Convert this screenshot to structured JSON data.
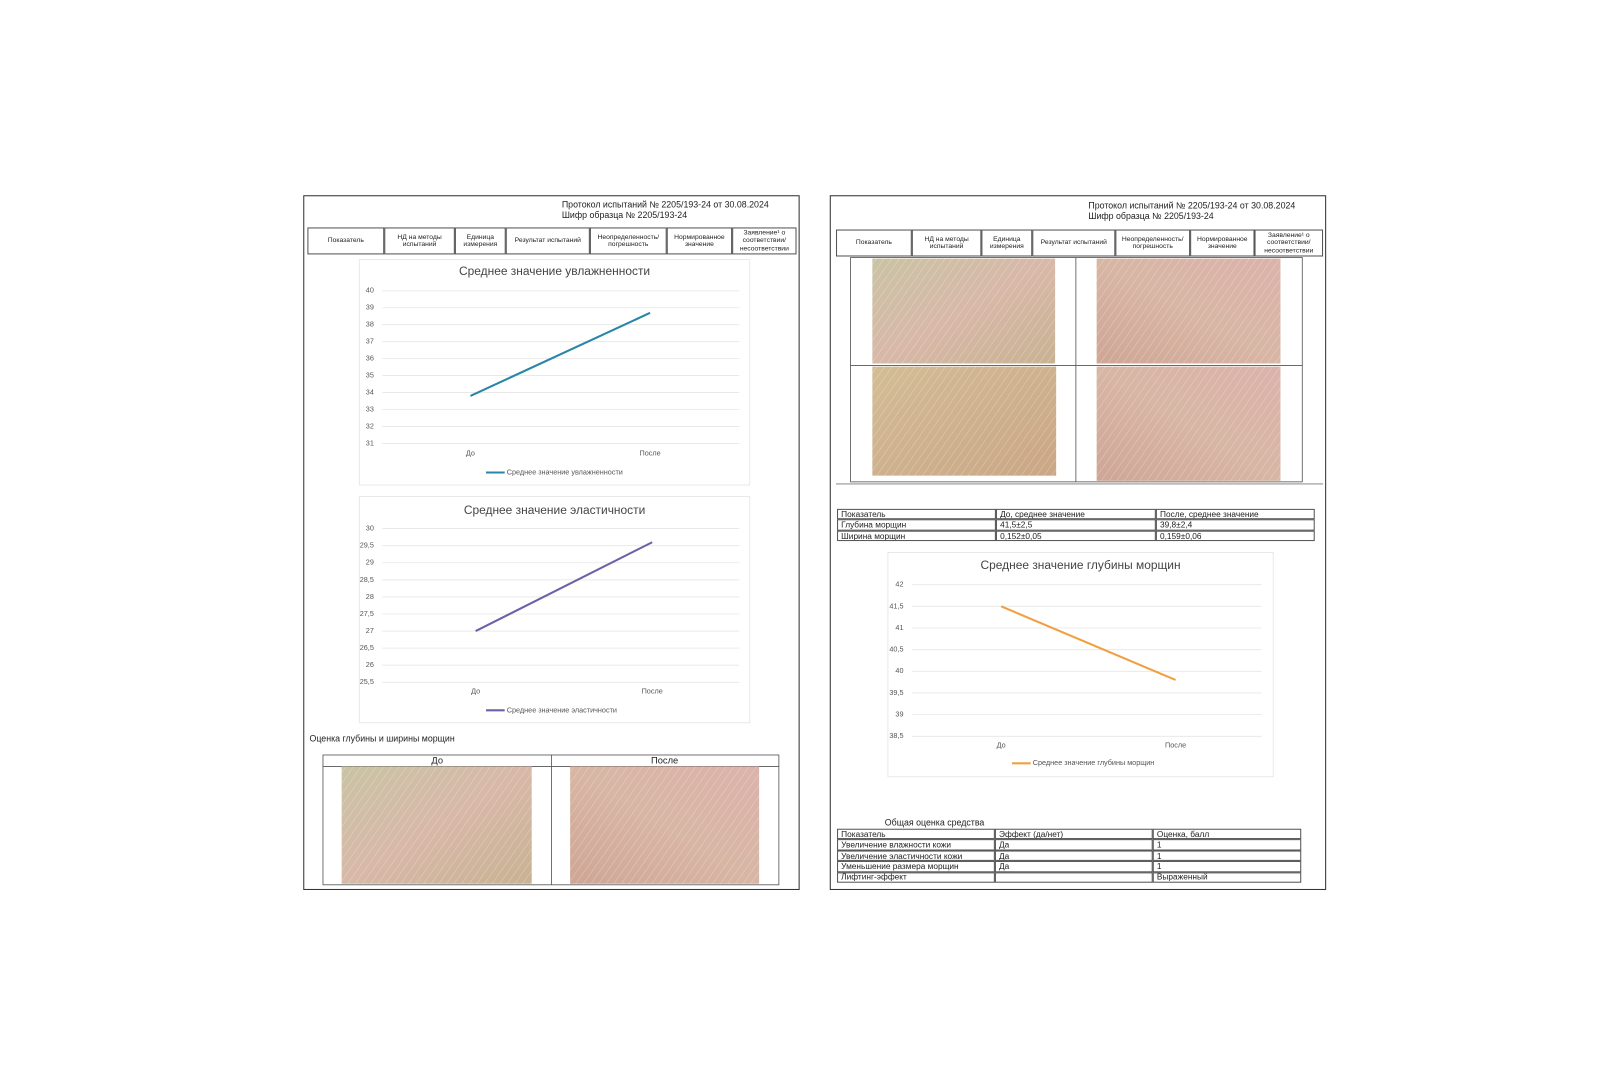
{
  "pages": [
    {
      "header": {
        "protocol": "Протокол испытаний № 2205/193-24 от 30.08.2024",
        "sample": "Шифр образца № 2205/193-24"
      },
      "columns": [
        "Показатель",
        "НД на методы испытаний",
        "Единица измерения",
        "Результат испытаний",
        "Неопределенность/ погрешность",
        "Нормированное значение",
        "Заявление¹ о соответствии/ несоответствии"
      ],
      "section_title": "Оценка глубины и ширины морщин",
      "photo_headers": [
        "До",
        "После"
      ]
    },
    {
      "header": {
        "protocol": "Протокол испытаний № 2205/193-24 от 30.08.2024",
        "sample": "Шифр образца № 2205/193-24"
      },
      "columns": [
        "Показатель",
        "НД на методы испытаний",
        "Единица измерения",
        "Результат испытаний",
        "Неопределенность/ погрешность",
        "Нормированное значение",
        "Заявление¹ о соответствии/ несоответствии"
      ],
      "results_table": {
        "header": [
          "Показатель",
          "До, среднее значение",
          "После, среднее значение"
        ],
        "rows": [
          [
            "Глубина морщин",
            "41,5±2,5",
            "39,8±2,4"
          ],
          [
            "Ширина морщин",
            "0,152±0,05",
            "0,159±0,06"
          ]
        ]
      },
      "summary": {
        "title": "Общая оценка средства",
        "header": [
          "Показатель",
          "Эффект (да/нет)",
          "Оценка, балл"
        ],
        "rows": [
          [
            "Увеличение влажности кожи",
            "Да",
            "1"
          ],
          [
            "Увеличение эластичности кожи",
            "Да",
            "1"
          ],
          [
            "Уменьшение размера морщин",
            "Да",
            "1"
          ],
          [
            "Лифтинг-эффект",
            null,
            "Выраженный"
          ]
        ]
      }
    }
  ],
  "chart_data": [
    {
      "type": "line",
      "title": "Среднее значение увлажненности",
      "categories": [
        "До",
        "После"
      ],
      "series": [
        {
          "name": "Среднее значение увлажненности",
          "color": "#2a86a6",
          "values": [
            33.8,
            38.7
          ]
        }
      ],
      "ylim": [
        31,
        40
      ],
      "yticks": [
        31,
        32,
        33,
        34,
        35,
        36,
        37,
        38,
        39,
        40
      ],
      "grid": true,
      "legend": "bottom"
    },
    {
      "type": "line",
      "title": "Среднее значение эластичности",
      "categories": [
        "До",
        "После"
      ],
      "series": [
        {
          "name": "Среднее значение эластичности",
          "color": "#6b62a6",
          "values": [
            27,
            29.6
          ]
        }
      ],
      "ylim": [
        25.5,
        30
      ],
      "yticks": [
        {
          "value": 25.5,
          "label": "25,5"
        },
        26,
        {
          "value": 26.5,
          "label": "26,5"
        },
        27,
        {
          "value": 27.5,
          "label": "27,5"
        },
        28,
        {
          "value": 28.5,
          "label": "28,5"
        },
        29,
        {
          "value": 29.5,
          "label": "29,5"
        },
        30
      ],
      "grid": true,
      "legend": "bottom"
    },
    {
      "type": "line",
      "title": "Среднее значение глубины морщин",
      "categories": [
        "До",
        "После"
      ],
      "series": [
        {
          "name": "Среднее значение глубины морщин",
          "color": "#f0a040",
          "values": [
            41.5,
            39.8
          ]
        }
      ],
      "ylim": [
        38.5,
        42
      ],
      "yticks": [
        {
          "value": 38.5,
          "label": "38,5"
        },
        39,
        {
          "value": 39.5,
          "label": "39,5"
        },
        40,
        {
          "value": 40.5,
          "label": "40,5"
        },
        41,
        {
          "value": 41.5,
          "label": "41,5"
        },
        42
      ],
      "grid": true,
      "legend": "bottom"
    }
  ]
}
